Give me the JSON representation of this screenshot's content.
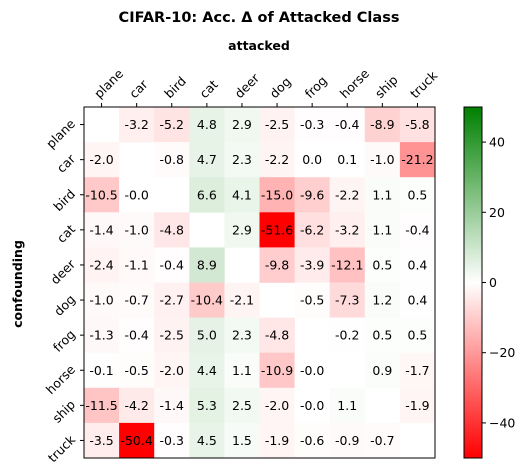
{
  "chart_data": {
    "type": "heatmap",
    "title": "CIFAR-10: Acc. Δ of Attacked Class",
    "xlabel": "attacked",
    "ylabel": "confounding",
    "x_categories": [
      "plane",
      "car",
      "bird",
      "cat",
      "deer",
      "dog",
      "frog",
      "horse",
      "ship",
      "truck"
    ],
    "y_categories": [
      "plane",
      "car",
      "bird",
      "cat",
      "deer",
      "dog",
      "frog",
      "horse",
      "ship",
      "truck"
    ],
    "values": [
      [
        null,
        -3.2,
        -5.2,
        4.8,
        2.9,
        -2.5,
        -0.3,
        -0.4,
        -8.9,
        -5.8
      ],
      [
        -2.0,
        null,
        -0.8,
        4.7,
        2.3,
        -2.2,
        0.0,
        0.1,
        -1.0,
        -21.2
      ],
      [
        -10.5,
        -0.0,
        null,
        6.6,
        4.1,
        -15.0,
        -9.6,
        -2.2,
        1.1,
        0.5
      ],
      [
        -1.4,
        -1.0,
        -4.8,
        null,
        2.9,
        -51.6,
        -6.2,
        -3.2,
        1.1,
        -0.4
      ],
      [
        -2.4,
        -1.1,
        -0.4,
        8.9,
        null,
        -9.8,
        -3.9,
        -12.1,
        0.5,
        0.4
      ],
      [
        -1.0,
        -0.7,
        -2.7,
        -10.4,
        -2.1,
        null,
        -0.5,
        -7.3,
        1.2,
        0.4
      ],
      [
        -1.3,
        -0.4,
        -2.5,
        5.0,
        2.3,
        -4.8,
        null,
        -0.2,
        0.5,
        0.5
      ],
      [
        -0.1,
        -0.5,
        -2.0,
        4.4,
        1.1,
        -10.9,
        -0.0,
        null,
        0.9,
        -1.7
      ],
      [
        -11.5,
        -4.2,
        -1.4,
        5.3,
        2.5,
        -2.0,
        -0.0,
        1.1,
        null,
        -1.9
      ],
      [
        -3.5,
        -50.4,
        -0.3,
        4.5,
        1.5,
        -1.9,
        -0.6,
        -0.9,
        -0.7,
        null
      ]
    ],
    "value_labels": [
      [
        "",
        "-3.2",
        "-5.2",
        "4.8",
        "2.9",
        "-2.5",
        "-0.3",
        "-0.4",
        "-8.9",
        "-5.8"
      ],
      [
        "-2.0",
        "",
        "-0.8",
        "4.7",
        "2.3",
        "-2.2",
        "0.0",
        "0.1",
        "-1.0",
        "-21.2"
      ],
      [
        "-10.5",
        "-0.0",
        "",
        "6.6",
        "4.1",
        "-15.0",
        "-9.6",
        "-2.2",
        "1.1",
        "0.5"
      ],
      [
        "-1.4",
        "-1.0",
        "-4.8",
        "",
        "2.9",
        "-51.6",
        "-6.2",
        "-3.2",
        "1.1",
        "-0.4"
      ],
      [
        "-2.4",
        "-1.1",
        "-0.4",
        "8.9",
        "",
        "-9.8",
        "-3.9",
        "-12.1",
        "0.5",
        "0.4"
      ],
      [
        "-1.0",
        "-0.7",
        "-2.7",
        "-10.4",
        "-2.1",
        "",
        "-0.5",
        "-7.3",
        "1.2",
        "0.4"
      ],
      [
        "-1.3",
        "-0.4",
        "-2.5",
        "5.0",
        "2.3",
        "-4.8",
        "",
        "-0.2",
        "0.5",
        "0.5"
      ],
      [
        "-0.1",
        "-0.5",
        "-2.0",
        "4.4",
        "1.1",
        "-10.9",
        "-0.0",
        "",
        "0.9",
        "-1.7"
      ],
      [
        "-11.5",
        "-4.2",
        "-1.4",
        "5.3",
        "2.5",
        "-2.0",
        "-0.0",
        "1.1",
        "",
        "-1.9"
      ],
      [
        "-3.5",
        "-50.4",
        "-0.3",
        "4.5",
        "1.5",
        "-1.9",
        "-0.6",
        "-0.9",
        "-0.7",
        ""
      ]
    ],
    "color_range": [
      -50,
      50
    ],
    "colorbar_ticks": [
      40,
      20,
      0,
      -20,
      -40
    ],
    "colorbar_tick_labels": [
      "40",
      "20",
      "0",
      "−20",
      "−40"
    ],
    "colors": {
      "negative": "#ff0000",
      "zero": "#ffffff",
      "positive": "#008000"
    },
    "grid": false
  }
}
